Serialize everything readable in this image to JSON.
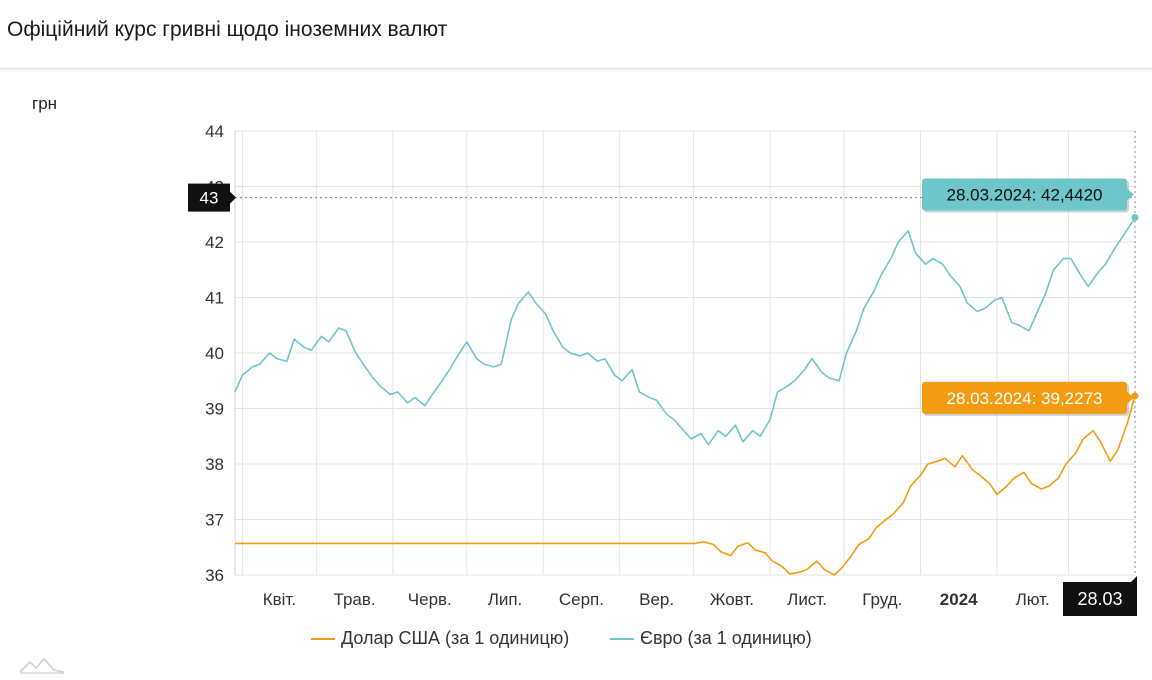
{
  "header": {
    "title": "Офіційний курс гривні щодо іноземних валют"
  },
  "unit_label": "грн",
  "colors": {
    "usd": "#f39c12",
    "eur": "#6ec6ca",
    "cursor_dark": "#111111"
  },
  "tooltips": {
    "eur": "28.03.2024: 42,4420",
    "usd": "28.03.2024: 39,2273"
  },
  "crosshair": {
    "y_label": "43",
    "x_label": "28.03"
  },
  "legend": {
    "usd": "Долар США (за 1 одиницю)",
    "eur": "Євро (за 1 одиницю)"
  },
  "chart_data": {
    "type": "line",
    "title": "Офіційний курс гривні щодо іноземних валют",
    "ylabel": "грн",
    "ylim": [
      36,
      44
    ],
    "yticks": [
      36,
      37,
      38,
      39,
      40,
      41,
      42,
      43,
      44
    ],
    "grid": true,
    "legend_position": "bottom",
    "x_range": [
      "2023-03-29",
      "2024-03-28"
    ],
    "month_labels": [
      {
        "date": "2023-04-01",
        "label": "Квіт.",
        "bold": false
      },
      {
        "date": "2023-05-01",
        "label": "Трав.",
        "bold": false
      },
      {
        "date": "2023-06-01",
        "label": "Черв.",
        "bold": false
      },
      {
        "date": "2023-07-01",
        "label": "Лип.",
        "bold": false
      },
      {
        "date": "2023-08-01",
        "label": "Серп.",
        "bold": false
      },
      {
        "date": "2023-09-01",
        "label": "Вер.",
        "bold": false
      },
      {
        "date": "2023-10-01",
        "label": "Жовт.",
        "bold": false
      },
      {
        "date": "2023-11-01",
        "label": "Лист.",
        "bold": false
      },
      {
        "date": "2023-12-01",
        "label": "Груд.",
        "bold": false
      },
      {
        "date": "2024-01-01",
        "label": "2024",
        "bold": true
      },
      {
        "date": "2024-02-01",
        "label": "Лют.",
        "bold": false
      }
    ],
    "series": [
      {
        "name": "Долар США (за 1 одиницю)",
        "key": "usd",
        "x": [
          "2023-03-29",
          "2023-04-15",
          "2023-05-01",
          "2023-05-20",
          "2023-06-10",
          "2023-07-01",
          "2023-07-20",
          "2023-08-10",
          "2023-09-01",
          "2023-09-20",
          "2023-10-02",
          "2023-10-05",
          "2023-10-09",
          "2023-10-12",
          "2023-10-16",
          "2023-10-19",
          "2023-10-23",
          "2023-10-26",
          "2023-10-30",
          "2023-11-02",
          "2023-11-06",
          "2023-11-09",
          "2023-11-13",
          "2023-11-16",
          "2023-11-20",
          "2023-11-23",
          "2023-11-27",
          "2023-11-30",
          "2023-12-04",
          "2023-12-07",
          "2023-12-11",
          "2023-12-14",
          "2023-12-18",
          "2023-12-21",
          "2023-12-25",
          "2023-12-28",
          "2024-01-01",
          "2024-01-04",
          "2024-01-08",
          "2024-01-11",
          "2024-01-15",
          "2024-01-18",
          "2024-01-22",
          "2024-01-25",
          "2024-01-29",
          "2024-02-01",
          "2024-02-05",
          "2024-02-08",
          "2024-02-12",
          "2024-02-15",
          "2024-02-19",
          "2024-02-22",
          "2024-02-26",
          "2024-02-29",
          "2024-03-04",
          "2024-03-07",
          "2024-03-11",
          "2024-03-14",
          "2024-03-18",
          "2024-03-21",
          "2024-03-25",
          "2024-03-28"
        ],
        "y": [
          36.5686,
          36.5686,
          36.5686,
          36.5686,
          36.5686,
          36.5686,
          36.5686,
          36.5686,
          36.5686,
          36.5686,
          36.5686,
          36.6,
          36.55,
          36.42,
          36.35,
          36.52,
          36.58,
          36.45,
          36.4,
          36.25,
          36.15,
          36.02,
          36.05,
          36.1,
          36.25,
          36.1,
          36.0,
          36.12,
          36.35,
          36.55,
          36.65,
          36.85,
          37.0,
          37.1,
          37.3,
          37.6,
          37.8,
          38.0,
          38.05,
          38.1,
          37.95,
          38.15,
          37.9,
          37.8,
          37.65,
          37.45,
          37.6,
          37.75,
          37.85,
          37.65,
          37.55,
          37.6,
          37.75,
          38.0,
          38.2,
          38.45,
          38.6,
          38.4,
          38.05,
          38.25,
          38.75,
          39.2273
        ]
      },
      {
        "name": "Євро (за 1 одиницю)",
        "key": "eur",
        "x": [
          "2023-03-29",
          "2023-04-01",
          "2023-04-05",
          "2023-04-08",
          "2023-04-12",
          "2023-04-15",
          "2023-04-19",
          "2023-04-22",
          "2023-04-26",
          "2023-04-29",
          "2023-05-03",
          "2023-05-06",
          "2023-05-10",
          "2023-05-13",
          "2023-05-17",
          "2023-05-20",
          "2023-05-24",
          "2023-05-27",
          "2023-05-31",
          "2023-06-03",
          "2023-06-07",
          "2023-06-10",
          "2023-06-14",
          "2023-06-17",
          "2023-06-21",
          "2023-06-24",
          "2023-06-28",
          "2023-07-01",
          "2023-07-05",
          "2023-07-08",
          "2023-07-12",
          "2023-07-15",
          "2023-07-19",
          "2023-07-22",
          "2023-07-26",
          "2023-07-29",
          "2023-08-02",
          "2023-08-05",
          "2023-08-09",
          "2023-08-12",
          "2023-08-16",
          "2023-08-19",
          "2023-08-23",
          "2023-08-26",
          "2023-08-30",
          "2023-09-02",
          "2023-09-06",
          "2023-09-09",
          "2023-09-13",
          "2023-09-16",
          "2023-09-20",
          "2023-09-23",
          "2023-09-27",
          "2023-09-30",
          "2023-10-04",
          "2023-10-07",
          "2023-10-11",
          "2023-10-14",
          "2023-10-18",
          "2023-10-21",
          "2023-10-25",
          "2023-10-28",
          "2023-11-01",
          "2023-11-04",
          "2023-11-08",
          "2023-11-11",
          "2023-11-15",
          "2023-11-18",
          "2023-11-22",
          "2023-11-25",
          "2023-11-29",
          "2023-12-02",
          "2023-12-06",
          "2023-12-09",
          "2023-12-13",
          "2023-12-16",
          "2023-12-20",
          "2023-12-23",
          "2023-12-27",
          "2023-12-30",
          "2024-01-03",
          "2024-01-06",
          "2024-01-10",
          "2024-01-13",
          "2024-01-17",
          "2024-01-20",
          "2024-01-24",
          "2024-01-27",
          "2024-01-31",
          "2024-02-03",
          "2024-02-07",
          "2024-02-10",
          "2024-02-14",
          "2024-02-17",
          "2024-02-21",
          "2024-02-24",
          "2024-02-28",
          "2024-03-02",
          "2024-03-06",
          "2024-03-09",
          "2024-03-13",
          "2024-03-16",
          "2024-03-20",
          "2024-03-23",
          "2024-03-26",
          "2024-03-28"
        ],
        "y": [
          39.3,
          39.6,
          39.75,
          39.8,
          40.0,
          39.9,
          39.85,
          40.25,
          40.1,
          40.05,
          40.3,
          40.2,
          40.45,
          40.4,
          40.0,
          39.8,
          39.55,
          39.4,
          39.25,
          39.3,
          39.1,
          39.2,
          39.05,
          39.25,
          39.5,
          39.7,
          40.0,
          40.2,
          39.9,
          39.8,
          39.75,
          39.8,
          40.6,
          40.9,
          41.1,
          40.9,
          40.7,
          40.4,
          40.1,
          40.0,
          39.95,
          40.0,
          39.85,
          39.9,
          39.6,
          39.5,
          39.7,
          39.3,
          39.2,
          39.15,
          38.9,
          38.8,
          38.6,
          38.45,
          38.55,
          38.35,
          38.6,
          38.5,
          38.7,
          38.4,
          38.6,
          38.5,
          38.8,
          39.3,
          39.4,
          39.5,
          39.7,
          39.9,
          39.65,
          39.55,
          39.5,
          40.0,
          40.4,
          40.8,
          41.1,
          41.4,
          41.7,
          42.0,
          42.2,
          41.8,
          41.6,
          41.7,
          41.6,
          41.4,
          41.2,
          40.9,
          40.75,
          40.8,
          40.95,
          41.0,
          40.55,
          40.5,
          40.4,
          40.7,
          41.1,
          41.5,
          41.7,
          41.7,
          41.4,
          41.2,
          41.45,
          41.6,
          41.9,
          42.1,
          42.3,
          42.442
        ]
      }
    ]
  }
}
